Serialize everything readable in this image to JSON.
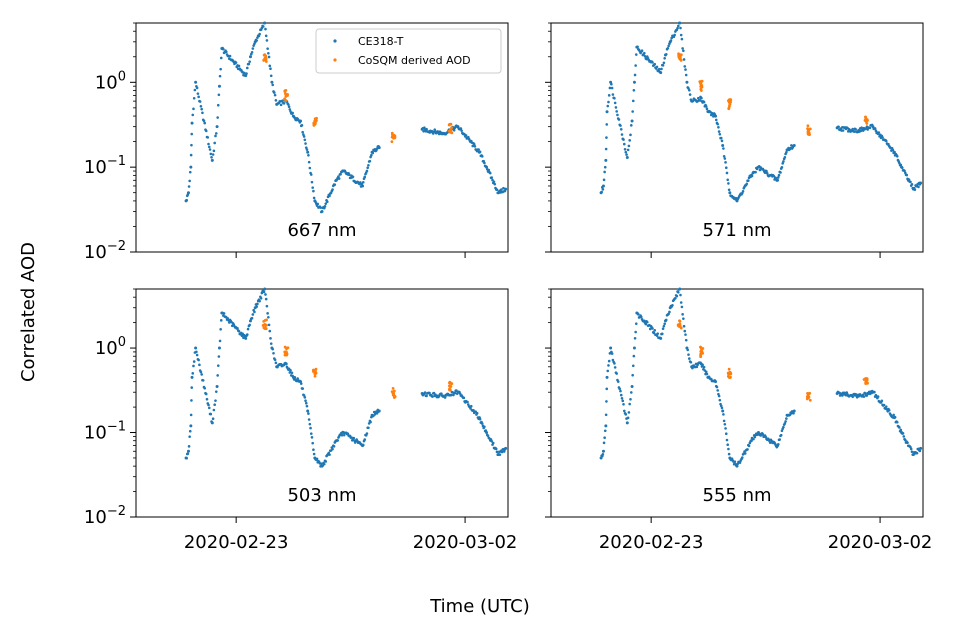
{
  "figure": {
    "ylabel": "Correlated AOD",
    "xlabel": "Time (UTC)"
  },
  "legend": {
    "entries": [
      {
        "label": "CE318-T",
        "color": "#1f77b4"
      },
      {
        "label": "CoSQM derived AOD",
        "color": "#ff7f0e"
      }
    ],
    "placement": "upper-right of top-left panel"
  },
  "colors": {
    "ce318t": "#1f77b4",
    "cosqm": "#ff7f0e"
  },
  "chart_data": [
    {
      "type": "scatter",
      "annotation": "667 nm",
      "xlim": [
        "2020-02-19T12:00",
        "2020-03-03T12:00"
      ],
      "ylim": [
        0.01,
        5
      ],
      "yscale": "log",
      "xticks": [
        "2020-02-23",
        "2020-03-02"
      ],
      "yticks": [
        "10^-2",
        "10^-1",
        "10^0"
      ],
      "show_x_ticklabels": false,
      "show_y_ticklabels": true,
      "series": [
        {
          "name": "CE318-T",
          "points": [
            [
              "2020-02-21T06:00",
              0.04
            ],
            [
              "2020-02-21T08:00",
              0.05
            ],
            [
              "2020-02-21T10:00",
              0.1
            ],
            [
              "2020-02-21T11:00",
              0.33
            ],
            [
              "2020-02-21T14:00",
              1.0
            ],
            [
              "2020-02-22T04:00",
              0.12
            ],
            [
              "2020-02-22T08:00",
              0.3
            ],
            [
              "2020-02-22T10:00",
              0.9
            ],
            [
              "2020-02-22T12:00",
              2.5
            ],
            [
              "2020-02-23T08:00",
              1.2
            ],
            [
              "2020-02-23T12:00",
              2.0
            ],
            [
              "2020-02-23T16:00",
              3.0
            ],
            [
              "2020-02-24T00:00",
              5.0
            ],
            [
              "2020-02-24T06:00",
              1.0
            ],
            [
              "2020-02-24T10:00",
              0.55
            ],
            [
              "2020-02-24T18:00",
              0.6
            ],
            [
              "2020-02-25T00:00",
              0.4
            ],
            [
              "2020-02-25T06:00",
              0.35
            ],
            [
              "2020-02-25T12:00",
              0.15
            ],
            [
              "2020-02-25T18:00",
              0.04
            ],
            [
              "2020-02-26T00:00",
              0.03
            ],
            [
              "2020-02-26T12:00",
              0.07
            ],
            [
              "2020-02-26T18:00",
              0.09
            ],
            [
              "2020-02-27T10:00",
              0.06
            ],
            [
              "2020-02-27T18:00",
              0.15
            ],
            [
              "2020-02-28T00:00",
              0.17
            ],
            [
              "2020-02-29T12:00",
              0.28
            ],
            [
              "2020-03-01T06:00",
              0.25
            ],
            [
              "2020-03-01T18:00",
              0.3
            ],
            [
              "2020-03-02T12:00",
              0.15
            ],
            [
              "2020-03-02T18:00",
              0.1
            ],
            [
              "2020-03-03T04:00",
              0.05
            ],
            [
              "2020-03-03T10:00",
              0.055
            ]
          ]
        },
        {
          "name": "CoSQM derived AOD",
          "points": [
            [
              "2020-02-24T00:00",
              1.9
            ],
            [
              "2020-02-24T18:00",
              0.7
            ],
            [
              "2020-02-25T18:00",
              0.35
            ],
            [
              "2020-02-28T12:00",
              0.22
            ],
            [
              "2020-03-01T12:00",
              0.28
            ]
          ]
        }
      ]
    },
    {
      "type": "scatter",
      "annotation": "571 nm",
      "xlim": [
        "2020-02-19T12:00",
        "2020-03-03T12:00"
      ],
      "ylim": [
        0.01,
        5
      ],
      "yscale": "log",
      "xticks": [
        "2020-02-23",
        "2020-03-02"
      ],
      "yticks": [
        "10^-2",
        "10^-1",
        "10^0"
      ],
      "show_x_ticklabels": false,
      "show_y_ticklabels": false,
      "series": [
        {
          "name": "CE318-T",
          "points": [
            [
              "2020-02-21T06:00",
              0.05
            ],
            [
              "2020-02-21T08:00",
              0.06
            ],
            [
              "2020-02-21T10:00",
              0.12
            ],
            [
              "2020-02-21T11:00",
              0.45
            ],
            [
              "2020-02-21T14:00",
              1.0
            ],
            [
              "2020-02-22T04:00",
              0.13
            ],
            [
              "2020-02-22T08:00",
              0.35
            ],
            [
              "2020-02-22T10:00",
              1.0
            ],
            [
              "2020-02-22T12:00",
              2.6
            ],
            [
              "2020-02-23T08:00",
              1.3
            ],
            [
              "2020-02-23T12:00",
              2.1
            ],
            [
              "2020-02-23T16:00",
              3.0
            ],
            [
              "2020-02-24T00:00",
              5.0
            ],
            [
              "2020-02-24T06:00",
              1.0
            ],
            [
              "2020-02-24T10:00",
              0.6
            ],
            [
              "2020-02-24T18:00",
              0.65
            ],
            [
              "2020-02-25T00:00",
              0.45
            ],
            [
              "2020-02-25T06:00",
              0.4
            ],
            [
              "2020-02-25T12:00",
              0.18
            ],
            [
              "2020-02-25T18:00",
              0.05
            ],
            [
              "2020-02-26T00:00",
              0.04
            ],
            [
              "2020-02-26T12:00",
              0.08
            ],
            [
              "2020-02-26T18:00",
              0.1
            ],
            [
              "2020-02-27T10:00",
              0.07
            ],
            [
              "2020-02-27T18:00",
              0.16
            ],
            [
              "2020-02-28T00:00",
              0.18
            ],
            [
              "2020-02-29T12:00",
              0.29
            ],
            [
              "2020-03-01T06:00",
              0.27
            ],
            [
              "2020-03-01T18:00",
              0.3
            ],
            [
              "2020-03-02T12:00",
              0.15
            ],
            [
              "2020-03-02T18:00",
              0.1
            ],
            [
              "2020-03-03T04:00",
              0.055
            ],
            [
              "2020-03-03T10:00",
              0.065
            ]
          ]
        },
        {
          "name": "CoSQM derived AOD",
          "points": [
            [
              "2020-02-24T00:00",
              1.9
            ],
            [
              "2020-02-24T18:00",
              0.9
            ],
            [
              "2020-02-25T18:00",
              0.55
            ],
            [
              "2020-02-28T12:00",
              0.27
            ],
            [
              "2020-03-01T12:00",
              0.36
            ]
          ]
        }
      ]
    },
    {
      "type": "scatter",
      "annotation": "503 nm",
      "xlim": [
        "2020-02-19T12:00",
        "2020-03-03T12:00"
      ],
      "ylim": [
        0.01,
        5
      ],
      "yscale": "log",
      "xticks": [
        "2020-02-23",
        "2020-03-02"
      ],
      "yticks": [
        "10^-2",
        "10^-1",
        "10^0"
      ],
      "show_x_ticklabels": true,
      "show_y_ticklabels": true,
      "series": [
        {
          "name": "CE318-T",
          "points": [
            [
              "2020-02-21T06:00",
              0.05
            ],
            [
              "2020-02-21T08:00",
              0.06
            ],
            [
              "2020-02-21T10:00",
              0.12
            ],
            [
              "2020-02-21T11:00",
              0.45
            ],
            [
              "2020-02-21T14:00",
              1.0
            ],
            [
              "2020-02-22T04:00",
              0.13
            ],
            [
              "2020-02-22T08:00",
              0.35
            ],
            [
              "2020-02-22T10:00",
              1.0
            ],
            [
              "2020-02-22T12:00",
              2.6
            ],
            [
              "2020-02-23T08:00",
              1.3
            ],
            [
              "2020-02-23T12:00",
              2.1
            ],
            [
              "2020-02-23T16:00",
              3.0
            ],
            [
              "2020-02-24T00:00",
              5.0
            ],
            [
              "2020-02-24T06:00",
              1.0
            ],
            [
              "2020-02-24T10:00",
              0.6
            ],
            [
              "2020-02-24T18:00",
              0.65
            ],
            [
              "2020-02-25T00:00",
              0.45
            ],
            [
              "2020-02-25T06:00",
              0.4
            ],
            [
              "2020-02-25T12:00",
              0.18
            ],
            [
              "2020-02-25T18:00",
              0.05
            ],
            [
              "2020-02-26T00:00",
              0.04
            ],
            [
              "2020-02-26T12:00",
              0.08
            ],
            [
              "2020-02-26T18:00",
              0.1
            ],
            [
              "2020-02-27T10:00",
              0.07
            ],
            [
              "2020-02-27T18:00",
              0.16
            ],
            [
              "2020-02-28T00:00",
              0.18
            ],
            [
              "2020-02-29T12:00",
              0.29
            ],
            [
              "2020-03-01T06:00",
              0.27
            ],
            [
              "2020-03-01T18:00",
              0.3
            ],
            [
              "2020-03-02T12:00",
              0.15
            ],
            [
              "2020-03-02T18:00",
              0.1
            ],
            [
              "2020-03-03T04:00",
              0.055
            ],
            [
              "2020-03-03T10:00",
              0.065
            ]
          ]
        },
        {
          "name": "CoSQM derived AOD",
          "points": [
            [
              "2020-02-24T00:00",
              1.9
            ],
            [
              "2020-02-24T18:00",
              0.9
            ],
            [
              "2020-02-25T18:00",
              0.5
            ],
            [
              "2020-02-28T12:00",
              0.29
            ],
            [
              "2020-03-01T12:00",
              0.35
            ]
          ]
        }
      ]
    },
    {
      "type": "scatter",
      "annotation": "555 nm",
      "xlim": [
        "2020-02-19T12:00",
        "2020-03-03T12:00"
      ],
      "ylim": [
        0.01,
        5
      ],
      "yscale": "log",
      "xticks": [
        "2020-02-23",
        "2020-03-02"
      ],
      "yticks": [
        "10^-2",
        "10^-1",
        "10^0"
      ],
      "show_x_ticklabels": true,
      "show_y_ticklabels": false,
      "series": [
        {
          "name": "CE318-T",
          "points": [
            [
              "2020-02-21T06:00",
              0.05
            ],
            [
              "2020-02-21T08:00",
              0.06
            ],
            [
              "2020-02-21T10:00",
              0.12
            ],
            [
              "2020-02-21T11:00",
              0.45
            ],
            [
              "2020-02-21T14:00",
              1.0
            ],
            [
              "2020-02-22T04:00",
              0.13
            ],
            [
              "2020-02-22T08:00",
              0.35
            ],
            [
              "2020-02-22T10:00",
              1.0
            ],
            [
              "2020-02-22T12:00",
              2.6
            ],
            [
              "2020-02-23T08:00",
              1.3
            ],
            [
              "2020-02-23T12:00",
              2.1
            ],
            [
              "2020-02-23T16:00",
              3.0
            ],
            [
              "2020-02-24T00:00",
              5.0
            ],
            [
              "2020-02-24T06:00",
              1.0
            ],
            [
              "2020-02-24T10:00",
              0.6
            ],
            [
              "2020-02-24T18:00",
              0.65
            ],
            [
              "2020-02-25T00:00",
              0.45
            ],
            [
              "2020-02-25T06:00",
              0.4
            ],
            [
              "2020-02-25T12:00",
              0.18
            ],
            [
              "2020-02-25T18:00",
              0.05
            ],
            [
              "2020-02-26T00:00",
              0.04
            ],
            [
              "2020-02-26T12:00",
              0.08
            ],
            [
              "2020-02-26T18:00",
              0.1
            ],
            [
              "2020-02-27T10:00",
              0.07
            ],
            [
              "2020-02-27T18:00",
              0.16
            ],
            [
              "2020-02-28T00:00",
              0.18
            ],
            [
              "2020-02-29T12:00",
              0.29
            ],
            [
              "2020-03-01T06:00",
              0.27
            ],
            [
              "2020-03-01T18:00",
              0.3
            ],
            [
              "2020-03-02T12:00",
              0.15
            ],
            [
              "2020-03-02T18:00",
              0.1
            ],
            [
              "2020-03-03T04:00",
              0.055
            ],
            [
              "2020-03-03T10:00",
              0.065
            ]
          ]
        },
        {
          "name": "CoSQM derived AOD",
          "points": [
            [
              "2020-02-24T00:00",
              1.9
            ],
            [
              "2020-02-24T18:00",
              0.9
            ],
            [
              "2020-02-25T18:00",
              0.5
            ],
            [
              "2020-02-28T12:00",
              0.26
            ],
            [
              "2020-03-01T12:00",
              0.38
            ]
          ]
        }
      ]
    }
  ]
}
